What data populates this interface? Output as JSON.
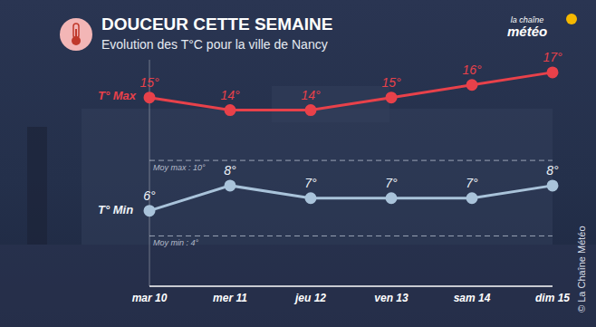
{
  "chart_data": {
    "type": "line",
    "title": "DOUCEUR CETTE SEMAINE",
    "subtitle": "Evolution des T°C pour la ville de Nancy",
    "categories": [
      "mar 10",
      "mer 11",
      "jeu 12",
      "ven 13",
      "sam 14",
      "dim 15"
    ],
    "series": [
      {
        "name": "T° Max",
        "color": "#e8414a",
        "values": [
          15,
          14,
          14,
          15,
          16,
          17
        ],
        "value_labels": [
          "15°",
          "14°",
          "14°",
          "15°",
          "16°",
          "17°"
        ]
      },
      {
        "name": "T° Min",
        "color": "#a9c3da",
        "values": [
          6,
          8,
          7,
          7,
          7,
          8
        ],
        "value_labels": [
          "6°",
          "8°",
          "7°",
          "7°",
          "7°",
          "8°"
        ]
      }
    ],
    "reference_lines": [
      {
        "label": "Moy max : 10°",
        "value": 10
      },
      {
        "label": "Moy min : 4°",
        "value": 4
      }
    ],
    "ylim": [
      0,
      18
    ],
    "data_labels": true,
    "tick_labels": "x",
    "marker": "circle",
    "source": "© La Chaîne Météo",
    "logo": [
      "la chaîne",
      "météo"
    ]
  }
}
